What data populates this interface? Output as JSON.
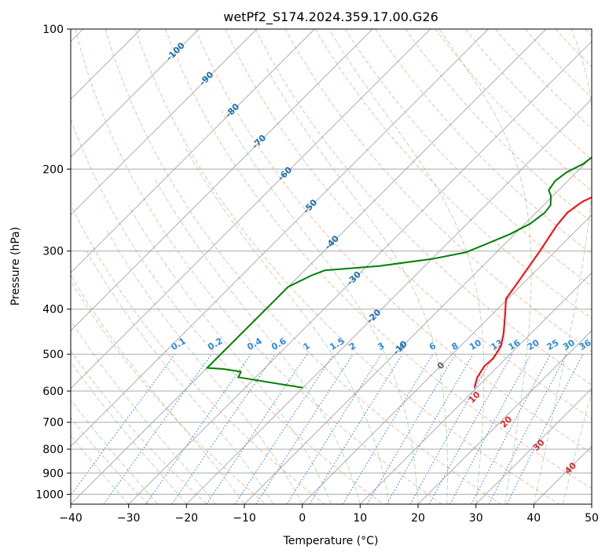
{
  "chart_data": {
    "type": "skew-t",
    "title": "wetPf2_S174.2024.359.17.00.G26",
    "xlabel": "Temperature (°C)",
    "ylabel": "Pressure (hPa)",
    "xlim": [
      -40,
      50
    ],
    "ylim": [
      1050,
      100
    ],
    "y_scale": "log",
    "grid": true,
    "x_ticks": [
      -40,
      -30,
      -20,
      -10,
      0,
      10,
      20,
      30,
      40,
      50
    ],
    "y_ticks": [
      100,
      200,
      300,
      400,
      500,
      600,
      700,
      800,
      900,
      1000
    ],
    "colors": {
      "temperature": "#ff0000",
      "dewpoint": "#008000",
      "isotherm": "#a0a0a0",
      "dry_adiabat": "#f4a582",
      "moist_adiabat": "#2ca02c",
      "mixing_ratio": "#1f77ff",
      "isotherm_label": "#1f6fb0",
      "moist_label": "#d62728",
      "zero_label": "#606060"
    },
    "series": [
      {
        "name": "temperature",
        "points": [
          [
            9.6,
            590
          ],
          [
            8.3,
            560
          ],
          [
            7.6,
            530
          ],
          [
            7.8,
            510
          ],
          [
            7.0,
            480
          ],
          [
            5.2,
            450
          ],
          [
            2.2,
            410
          ],
          [
            -0.3,
            380
          ],
          [
            -1.1,
            350
          ],
          [
            -2.7,
            300
          ],
          [
            -4.2,
            265
          ],
          [
            -4.6,
            248
          ],
          [
            -3.9,
            235
          ],
          [
            -1.6,
            222
          ],
          [
            1.0,
            207
          ],
          [
            4.1,
            193
          ],
          [
            7.7,
            181
          ],
          [
            10.9,
            171
          ],
          [
            12.9,
            160
          ],
          [
            14.6,
            148
          ],
          [
            16.6,
            136
          ],
          [
            16.9,
            126
          ],
          [
            19.1,
            115
          ],
          [
            21.6,
            104
          ],
          [
            23.1,
            99
          ]
        ]
      },
      {
        "name": "dewpoint",
        "points": [
          [
            -20.0,
            590
          ],
          [
            -26.5,
            575
          ],
          [
            -33.0,
            560
          ],
          [
            -33.5,
            545
          ],
          [
            -37.0,
            538
          ],
          [
            -40,
            535
          ],
          [
            -40,
            358
          ],
          [
            -38,
            339
          ],
          [
            -36.5,
            330
          ],
          [
            -27.9,
            323
          ],
          [
            -20.0,
            312
          ],
          [
            -15.3,
            302
          ],
          [
            -12.9,
            288
          ],
          [
            -10.8,
            276
          ],
          [
            -9.1,
            262
          ],
          [
            -8.5,
            248
          ],
          [
            -8.8,
            239
          ],
          [
            -10.4,
            228
          ],
          [
            -11.7,
            222
          ],
          [
            -12.2,
            212
          ],
          [
            -11.7,
            203
          ],
          [
            -10.3,
            195
          ],
          [
            -9.7,
            185
          ],
          [
            -10.2,
            176
          ],
          [
            -10.3,
            166
          ],
          [
            -8.8,
            157
          ],
          [
            -6.6,
            147
          ],
          [
            -3.5,
            137
          ],
          [
            -0.8,
            128
          ],
          [
            0.6,
            119
          ],
          [
            1.8,
            110
          ],
          [
            3.1,
            102
          ],
          [
            3.5,
            99
          ]
        ]
      }
    ],
    "isotherm_labels": [
      "-100",
      "-90",
      "-80",
      "-70",
      "-60",
      "-50",
      "-40",
      "-30",
      "-20",
      "-10"
    ],
    "mixing_ratio_labels": [
      "0.1",
      "0.2",
      "0.4",
      "0.6",
      "1",
      "1.5",
      "2",
      "3",
      "4",
      "6",
      "8",
      "10",
      "13",
      "16",
      "20",
      "25",
      "30",
      "36"
    ],
    "moist_adiabat_labels": [
      "0",
      "10",
      "20",
      "30",
      "40"
    ]
  }
}
